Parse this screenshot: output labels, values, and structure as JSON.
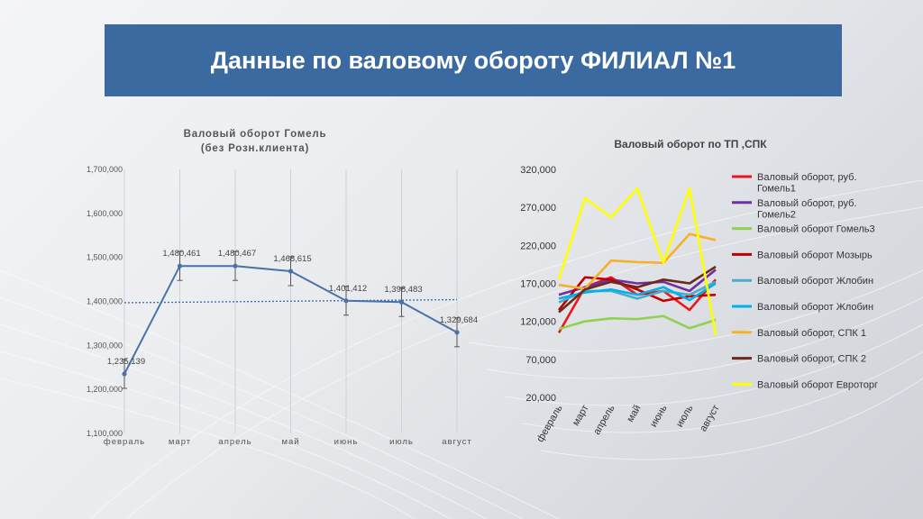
{
  "slide": {
    "title": "Данные по валовому обороту ФИЛИАЛ №1"
  },
  "colors": {
    "title_bar": "#3b6aa0",
    "chart1_line": "#4a72a8"
  },
  "chart_data": [
    {
      "type": "line",
      "title": "Валовый оборот Гомель",
      "subtitle": "(без Розн.клиента)",
      "categories": [
        "февраль",
        "март",
        "апрель",
        "май",
        "июнь",
        "июль",
        "август"
      ],
      "series": [
        {
          "values": [
            1235139,
            1480461,
            1480467,
            1468615,
            1401412,
            1398483,
            1329684
          ]
        }
      ],
      "data_labels": [
        "1,235,139",
        "1,480,461",
        "1,480,467",
        "1,468,615",
        "1,401,412",
        "1,398,483",
        "1,329,684"
      ],
      "y_ticks": [
        "1,100,000",
        "1,200,000",
        "1,300,000",
        "1,400,000",
        "1,500,000",
        "1,600,000",
        "1,700,000"
      ],
      "ylim": [
        1100000,
        1700000
      ],
      "error_bars": true,
      "trendline": {
        "style": "dotted",
        "start": 1397000,
        "end": 1404000
      },
      "grid": "vertical"
    },
    {
      "type": "line",
      "title": "Валовый оборот по ТП ,СПК",
      "categories": [
        "февраль",
        "март",
        "апрель",
        "май",
        "июнь",
        "июль",
        "август"
      ],
      "y_ticks": [
        "20,000",
        "70,000",
        "120,000",
        "170,000",
        "220,000",
        "270,000",
        "320,000"
      ],
      "ylim": [
        20000,
        320000
      ],
      "legend_position": "right",
      "series": [
        {
          "name": "Валовый оборот, руб. Гомель1",
          "color": "#e8191c",
          "values": [
            105000,
            165000,
            178000,
            155000,
            160000,
            135000,
            175000
          ]
        },
        {
          "name": "Валовый оборот, руб. Гомель2",
          "color": "#7030a0",
          "values": [
            155000,
            165000,
            175000,
            170000,
            172000,
            160000,
            188000
          ]
        },
        {
          "name": "Валовый оборот Гомель3",
          "color": "#92d050",
          "values": [
            110000,
            120000,
            124000,
            123000,
            127000,
            111000,
            122000
          ]
        },
        {
          "name": "Валовый оборот Мозырь",
          "color": "#c00000",
          "values": [
            135000,
            178000,
            175000,
            162000,
            147000,
            153000,
            155000
          ]
        },
        {
          "name": "Валовый оборот Жлобин",
          "color": "#4bacc6",
          "values": [
            145000,
            160000,
            160000,
            150000,
            160000,
            155000,
            172000
          ]
        },
        {
          "name": "Валовый оборот Жлобин",
          "color": "#00b0f0",
          "values": [
            150000,
            158000,
            162000,
            155000,
            165000,
            148000,
            170000
          ]
        },
        {
          "name": "Валовый оборот, СПК 1",
          "color": "#f5b12a",
          "values": [
            168000,
            163000,
            200000,
            198000,
            197000,
            235000,
            227000
          ]
        },
        {
          "name": "Валовый оборот, СПК 2",
          "color": "#6b2a1a",
          "values": [
            132000,
            162000,
            172000,
            165000,
            175000,
            170000,
            192000
          ]
        },
        {
          "name": "Валовый оборот Евроторг",
          "color": "#ffff00",
          "values": [
            175000,
            282000,
            257000,
            295000,
            197000,
            295000,
            102000
          ]
        }
      ]
    }
  ]
}
